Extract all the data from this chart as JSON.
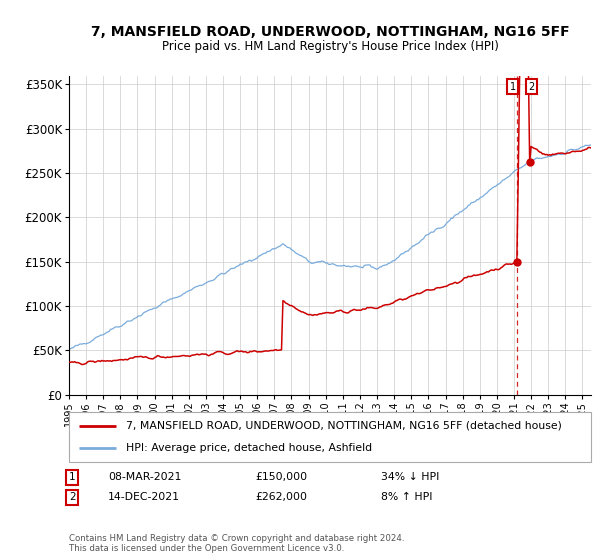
{
  "title": "7, MANSFIELD ROAD, UNDERWOOD, NOTTINGHAM, NG16 5FF",
  "subtitle": "Price paid vs. HM Land Registry's House Price Index (HPI)",
  "legend_line1": "7, MANSFIELD ROAD, UNDERWOOD, NOTTINGHAM, NG16 5FF (detached house)",
  "legend_line2": "HPI: Average price, detached house, Ashfield",
  "annotation1_date": "08-MAR-2021",
  "annotation1_price": "£150,000",
  "annotation1_hpi": "34% ↓ HPI",
  "annotation2_date": "14-DEC-2021",
  "annotation2_price": "£262,000",
  "annotation2_hpi": "8% ↑ HPI",
  "footer": "Contains HM Land Registry data © Crown copyright and database right 2024.\nThis data is licensed under the Open Government Licence v3.0.",
  "red_color": "#cc0000",
  "blue_color": "#7aacdc",
  "grid_color": "#cccccc",
  "bg_color": "#ffffff",
  "ylim": [
    0,
    360000
  ],
  "yticks": [
    0,
    50000,
    100000,
    150000,
    200000,
    250000,
    300000,
    350000
  ],
  "xlim_start": 1995,
  "xlim_end": 2025.5,
  "sale1_year": 2021.18,
  "sale1_y": 150000,
  "sale2_year": 2021.92,
  "sale2_y": 262000,
  "vline_x": 2021.18,
  "noise_seed": 42
}
